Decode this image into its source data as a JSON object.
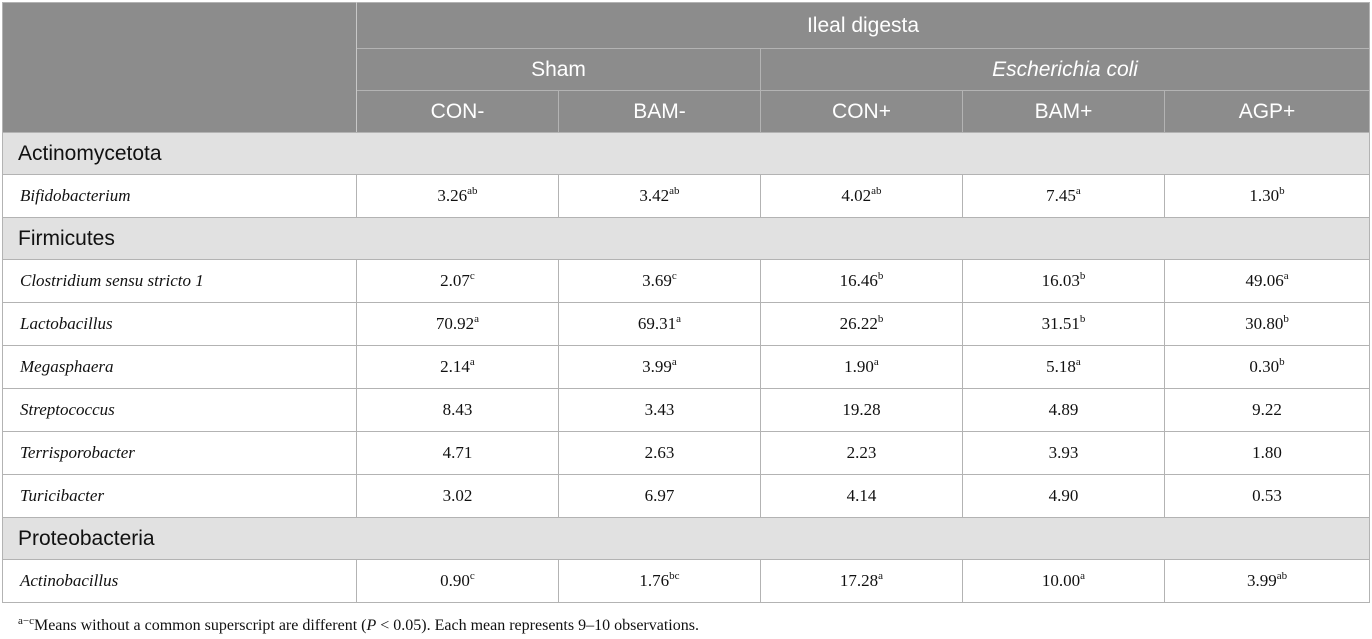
{
  "header": {
    "section": "Ileal digesta",
    "groups": [
      "Sham",
      "Escherichia coli"
    ],
    "columns": [
      "CON-",
      "BAM-",
      "CON+",
      "BAM+",
      "AGP+"
    ]
  },
  "phyla": [
    {
      "name": "Actinomycetota",
      "rows": [
        {
          "genus": "Bifidobacterium",
          "cells": [
            {
              "v": "3.26",
              "s": "ab"
            },
            {
              "v": "3.42",
              "s": "ab"
            },
            {
              "v": "4.02",
              "s": "ab"
            },
            {
              "v": "7.45",
              "s": "a"
            },
            {
              "v": "1.30",
              "s": "b"
            }
          ]
        }
      ]
    },
    {
      "name": "Firmicutes",
      "rows": [
        {
          "genus": "Clostridium sensu stricto 1",
          "cells": [
            {
              "v": "2.07",
              "s": "c"
            },
            {
              "v": "3.69",
              "s": "c"
            },
            {
              "v": "16.46",
              "s": "b"
            },
            {
              "v": "16.03",
              "s": "b"
            },
            {
              "v": "49.06",
              "s": "a"
            }
          ]
        },
        {
          "genus": "Lactobacillus",
          "cells": [
            {
              "v": "70.92",
              "s": "a"
            },
            {
              "v": "69.31",
              "s": "a"
            },
            {
              "v": "26.22",
              "s": "b"
            },
            {
              "v": "31.51",
              "s": "b"
            },
            {
              "v": "30.80",
              "s": "b"
            }
          ]
        },
        {
          "genus": "Megasphaera",
          "cells": [
            {
              "v": "2.14",
              "s": "a"
            },
            {
              "v": "3.99",
              "s": "a"
            },
            {
              "v": "1.90",
              "s": "a"
            },
            {
              "v": "5.18",
              "s": "a"
            },
            {
              "v": "0.30",
              "s": "b"
            }
          ]
        },
        {
          "genus": "Streptococcus",
          "cells": [
            {
              "v": "8.43",
              "s": ""
            },
            {
              "v": "3.43",
              "s": ""
            },
            {
              "v": "19.28",
              "s": ""
            },
            {
              "v": "4.89",
              "s": ""
            },
            {
              "v": "9.22",
              "s": ""
            }
          ]
        },
        {
          "genus": "Terrisporobacter",
          "cells": [
            {
              "v": "4.71",
              "s": ""
            },
            {
              "v": "2.63",
              "s": ""
            },
            {
              "v": "2.23",
              "s": ""
            },
            {
              "v": "3.93",
              "s": ""
            },
            {
              "v": "1.80",
              "s": ""
            }
          ]
        },
        {
          "genus": "Turicibacter",
          "cells": [
            {
              "v": "3.02",
              "s": ""
            },
            {
              "v": "6.97",
              "s": ""
            },
            {
              "v": "4.14",
              "s": ""
            },
            {
              "v": "4.90",
              "s": ""
            },
            {
              "v": "0.53",
              "s": ""
            }
          ]
        }
      ]
    },
    {
      "name": "Proteobacteria",
      "rows": [
        {
          "genus": "Actinobacillus",
          "cells": [
            {
              "v": "0.90",
              "s": "c"
            },
            {
              "v": "1.76",
              "s": "bc"
            },
            {
              "v": "17.28",
              "s": "a"
            },
            {
              "v": "10.00",
              "s": "a"
            },
            {
              "v": "3.99",
              "s": "ab"
            }
          ]
        }
      ]
    }
  ],
  "footnote": {
    "mark": "a−c",
    "text_before": "Means without a common superscript are different (",
    "p_symbol": "P",
    "text_after": " < 0.05). Each mean represents 9–10 observations."
  }
}
